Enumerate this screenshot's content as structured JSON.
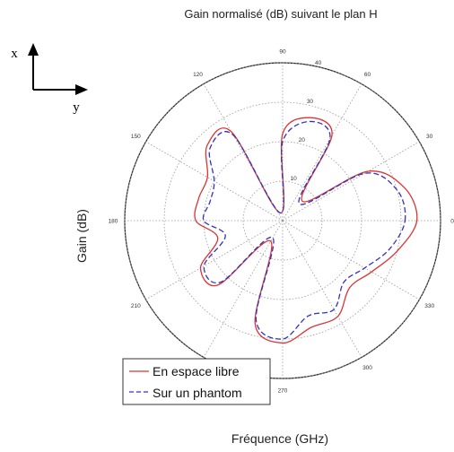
{
  "chart_data": {
    "type": "polar-line",
    "title": "Gain normalisé (dB) suivant le plan H",
    "xlabel": "Fréquence (GHz)",
    "ylabel": "Gain (dB)",
    "angle_ticks": [
      "90",
      "60",
      "30",
      "0",
      "330",
      "300",
      "270",
      "240",
      "210",
      "180",
      "150",
      "120"
    ],
    "radial_ticks": [
      "10",
      "20",
      "30",
      "40"
    ],
    "radial_range": [
      0,
      40
    ],
    "grid": true,
    "legend_position": "bottom-left",
    "angles_deg": [
      0,
      15,
      30,
      45,
      60,
      75,
      90,
      105,
      120,
      135,
      150,
      165,
      180,
      195,
      210,
      225,
      240,
      255,
      270,
      285,
      300,
      315,
      330,
      345
    ],
    "series": [
      {
        "name": "En espace libre",
        "color": "#dd3333",
        "dash": "solid",
        "values": [
          34,
          32,
          25,
          7,
          25,
          27,
          22,
          2,
          26,
          27,
          22,
          22,
          22,
          17,
          24,
          23,
          6,
          27,
          31,
          28,
          28,
          24,
          26,
          30
        ]
      },
      {
        "name": "Sur un phantom",
        "color": "#3333bb",
        "dash": "dashed",
        "values": [
          31,
          30,
          24,
          6,
          24,
          26,
          20,
          2,
          25,
          26,
          20,
          19,
          20,
          15,
          23,
          22,
          5,
          26,
          30,
          25,
          26,
          22,
          24,
          28
        ]
      }
    ]
  },
  "axes_indicator": {
    "x_label": "x",
    "y_label": "y"
  }
}
